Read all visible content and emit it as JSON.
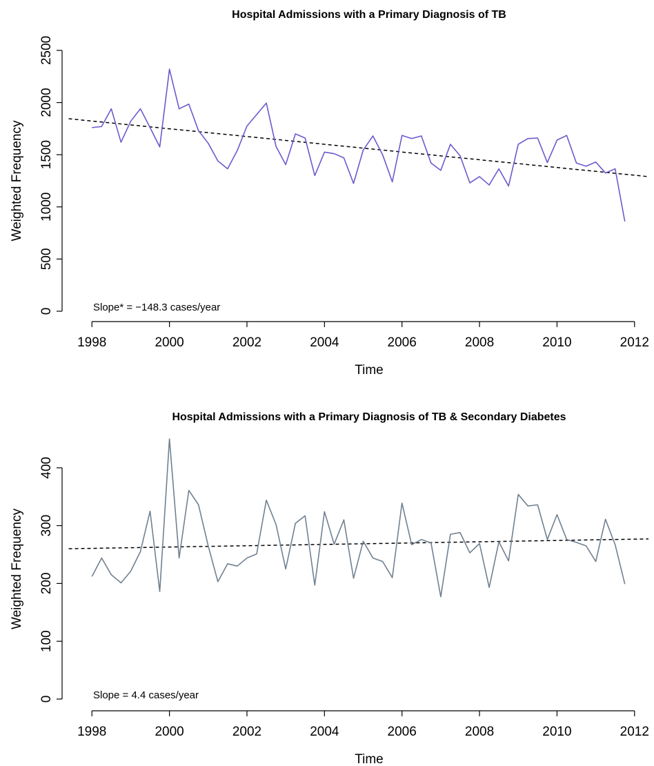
{
  "chart_data": [
    {
      "type": "line",
      "title": "Hospital Admissions with a Primary Diagnosis of TB",
      "xlabel": "Time",
      "ylabel": "Weighted Frequency",
      "annotation": "Slope* = −148.3 cases/year",
      "color": "#6a5acd",
      "x": [
        1998,
        1998.25,
        1998.5,
        1998.75,
        1999,
        1999.25,
        1999.5,
        1999.75,
        2000,
        2000.25,
        2000.5,
        2000.75,
        2001,
        2001.25,
        2001.5,
        2001.75,
        2002,
        2002.25,
        2002.5,
        2002.75,
        2003,
        2003.25,
        2003.5,
        2003.75,
        2004,
        2004.25,
        2004.5,
        2004.75,
        2005,
        2005.25,
        2005.5,
        2005.75,
        2006,
        2006.25,
        2006.5,
        2006.75,
        2007,
        2007.25,
        2007.5,
        2007.75,
        2008,
        2008.25,
        2008.5,
        2008.75,
        2009,
        2009.25,
        2009.5,
        2009.75,
        2010,
        2010.25,
        2010.5,
        2010.75,
        2011,
        2011.25,
        2011.5,
        2011.75
      ],
      "values": [
        1760,
        1770,
        1940,
        1620,
        1820,
        1940,
        1760,
        1575,
        2320,
        1940,
        1985,
        1730,
        1610,
        1440,
        1365,
        1540,
        1775,
        1885,
        1995,
        1580,
        1405,
        1700,
        1660,
        1300,
        1525,
        1510,
        1470,
        1225,
        1545,
        1680,
        1500,
        1240,
        1685,
        1655,
        1680,
        1420,
        1350,
        1600,
        1490,
        1230,
        1290,
        1210,
        1365,
        1200,
        1600,
        1655,
        1660,
        1425,
        1640,
        1685,
        1420,
        1390,
        1430,
        1325,
        1365,
        860
      ],
      "trend": {
        "x": [
          1997.4,
          2012.36
        ],
        "values": [
          1845,
          1290
        ]
      },
      "xlim": [
        1997.23,
        2012.36
      ],
      "ylim": [
        0,
        2500
      ],
      "xticks": [
        1998,
        2000,
        2002,
        2004,
        2006,
        2008,
        2010,
        2012
      ],
      "yticks": [
        0,
        500,
        1000,
        1500,
        2000,
        2500
      ]
    },
    {
      "type": "line",
      "title": "Hospital Admissions with a Primary Diagnosis of TB & Secondary Diabetes",
      "xlabel": "Time",
      "ylabel": "Weighted Frequency",
      "annotation": "Slope =  4.4 cases/year",
      "color": "#708090",
      "x": [
        1998,
        1998.25,
        1998.5,
        1998.75,
        1999,
        1999.25,
        1999.5,
        1999.75,
        2000,
        2000.25,
        2000.5,
        2000.75,
        2001,
        2001.25,
        2001.5,
        2001.75,
        2002,
        2002.25,
        2002.5,
        2002.75,
        2003,
        2003.25,
        2003.5,
        2003.75,
        2004,
        2004.25,
        2004.5,
        2004.75,
        2005,
        2005.25,
        2005.5,
        2005.75,
        2006,
        2006.25,
        2006.5,
        2006.75,
        2007,
        2007.25,
        2007.5,
        2007.75,
        2008,
        2008.25,
        2008.5,
        2008.75,
        2009,
        2009.25,
        2009.5,
        2009.75,
        2010,
        2010.25,
        2010.5,
        2010.75,
        2011,
        2011.25,
        2011.5,
        2011.75
      ],
      "values": [
        212,
        244,
        215,
        201,
        221,
        255,
        325,
        186,
        450,
        244,
        361,
        336,
        265,
        203,
        234,
        230,
        244,
        251,
        344,
        302,
        225,
        304,
        317,
        197,
        324,
        268,
        310,
        209,
        273,
        244,
        238,
        210,
        339,
        267,
        276,
        270,
        177,
        285,
        288,
        253,
        269,
        193,
        272,
        239,
        354,
        334,
        336,
        276,
        319,
        276,
        271,
        265,
        238,
        311,
        267,
        199
      ],
      "trend": {
        "x": [
          1997.4,
          2012.36
        ],
        "values": [
          260,
          277
        ]
      },
      "xlim": [
        1997.23,
        2012.36
      ],
      "ylim": [
        0,
        450
      ],
      "xticks": [
        1998,
        2000,
        2002,
        2004,
        2006,
        2008,
        2010,
        2012
      ],
      "yticks": [
        0,
        100,
        200,
        300,
        400
      ]
    }
  ]
}
